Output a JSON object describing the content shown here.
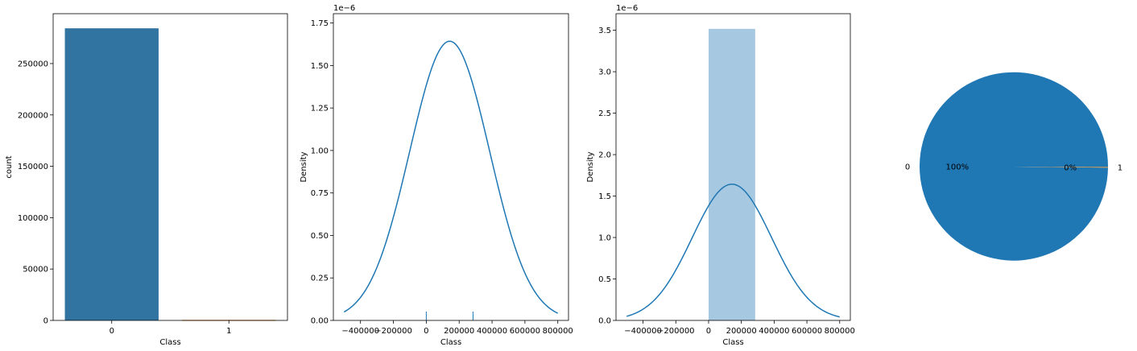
{
  "chart_data": [
    {
      "type": "bar",
      "xlabel": "Class",
      "ylabel": "count",
      "categories": [
        "0",
        "1"
      ],
      "values": [
        284315,
        492
      ],
      "colors": [
        "#3274a1",
        "#e1812c"
      ],
      "ylim": [
        0,
        298550
      ],
      "yticks": [
        0,
        50000,
        100000,
        150000,
        200000,
        250000
      ],
      "ytick_labels": [
        "0",
        "50000",
        "100000",
        "150000",
        "200000",
        "250000"
      ],
      "grid": false
    },
    {
      "type": "line",
      "subtype": "kde-with-rug",
      "xlabel": "Class",
      "ylabel": "Density",
      "offset_text": "1e−6",
      "kde_mean": 142404,
      "kde_std": 242815,
      "peak_density": 1.643e-06,
      "x_range": [
        -500000,
        800000
      ],
      "rug_x": [
        0,
        284315
      ],
      "line_color": "#1f77b4",
      "xlim": [
        -565000,
        865000
      ],
      "ylim": [
        0,
        1.805e-06
      ],
      "xticks": [
        -400000,
        -200000,
        0,
        200000,
        400000,
        600000,
        800000
      ],
      "xtick_labels": [
        "−400000",
        "−200000",
        "0",
        "200000",
        "400000",
        "600000",
        "800000"
      ],
      "yticks": [
        0,
        2.5e-07,
        5e-07,
        7.5e-07,
        1e-06,
        1.25e-06,
        1.5e-06,
        1.75e-06
      ],
      "ytick_labels": [
        "0.00",
        "0.25",
        "0.50",
        "0.75",
        "1.00",
        "1.25",
        "1.50",
        "1.75"
      ],
      "grid": false
    },
    {
      "type": "bar",
      "subtype": "histogram-with-kde",
      "xlabel": "Class",
      "ylabel": "Density",
      "offset_text": "1e−6",
      "hist_bins": [
        {
          "x0": 0,
          "x1": 284315,
          "density": 3.517e-06
        }
      ],
      "hist_color": "#a6c8e0",
      "kde_mean": 142404,
      "kde_std": 242815,
      "kde_range": [
        -500000,
        800000
      ],
      "line_color": "#1f77b4",
      "xlim": [
        -565000,
        865000
      ],
      "ylim": [
        0,
        3.7e-06
      ],
      "xticks": [
        -400000,
        -200000,
        0,
        200000,
        400000,
        600000,
        800000
      ],
      "xtick_labels": [
        "−400000",
        "−200000",
        "0",
        "200000",
        "400000",
        "600000",
        "800000"
      ],
      "yticks": [
        0,
        5e-07,
        1e-06,
        1.5e-06,
        2e-06,
        2.5e-06,
        3e-06,
        3.5e-06
      ],
      "ytick_labels": [
        "0.0",
        "0.5",
        "1.0",
        "1.5",
        "2.0",
        "2.5",
        "3.0",
        "3.5"
      ],
      "grid": false
    },
    {
      "type": "pie",
      "labels": [
        "0",
        "1"
      ],
      "values": [
        284315,
        492
      ],
      "pct_labels": [
        "100%",
        "0%"
      ],
      "colors": [
        "#1f77b4",
        "#b5915a"
      ]
    }
  ]
}
